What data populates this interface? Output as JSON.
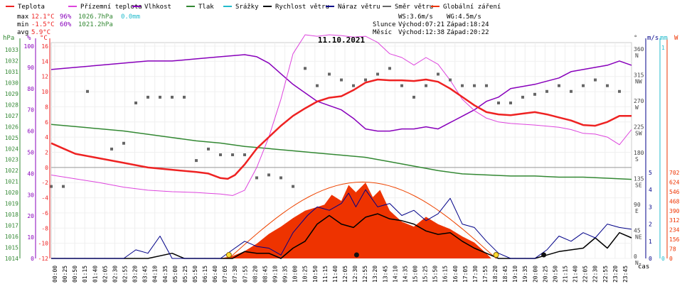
{
  "chart_data": {
    "type": "line",
    "title": "11.10.2021",
    "legend": [
      {
        "name": "Teplota",
        "color": "#ee2222"
      },
      {
        "name": "Přízemní teplota",
        "color": "#dd44dd"
      },
      {
        "name": "Vlhkost",
        "color": "#8800bb"
      },
      {
        "name": "Tlak",
        "color": "#338833"
      },
      {
        "name": "Srážky",
        "color": "#22bbcc"
      },
      {
        "name": "Rychlost větru",
        "color": "#000000"
      },
      {
        "name": "Náraz větru",
        "color": "#000088"
      },
      {
        "name": "Směr větru",
        "color": "#666666"
      },
      {
        "name": "Globální záření",
        "color": "#ee3300"
      }
    ],
    "stats": [
      {
        "label": "max",
        "temp": "12.1°C",
        "hum": "96%",
        "press": "1026.7hPa",
        "rain": "0.0mm"
      },
      {
        "label": "min",
        "temp": "-1.5°C",
        "hum": "60%",
        "press": "1021.2hPa",
        "rain": ""
      },
      {
        "label": "avg",
        "temp": "5.9°C",
        "hum": "",
        "press": "",
        "rain": ""
      }
    ],
    "info": {
      "ws": "WS:3.6m/s",
      "wg": "WG:4.5m/s",
      "sun_label": "Slunce",
      "sunrise": "Východ:07:21",
      "sunset": "Západ:18:24",
      "moon_label": "Měsíc",
      "moonrise": "Východ:12:38",
      "moonset": "Západ:20:22"
    },
    "left_axes": {
      "hpa_title": "hPa",
      "hpa": [
        "1014",
        "1015",
        "1016",
        "1017",
        "1018",
        "1019",
        "1020",
        "1021",
        "1022",
        "1023",
        "1024",
        "1025",
        "1026",
        "1027",
        "1028",
        "1029",
        "1030",
        "1031",
        "1032",
        "1033"
      ],
      "pct_title": "%",
      "pct": [
        "0",
        "10",
        "20",
        "30",
        "40",
        "50",
        "60",
        "70",
        "80",
        "90",
        "100"
      ],
      "c_title": "°C",
      "c": [
        "-12",
        "-10",
        "-8",
        "-6",
        "-4",
        "-2",
        "0",
        "2",
        "4",
        "6",
        "8",
        "10",
        "12",
        "14",
        "16"
      ]
    },
    "right_axes": {
      "dir_title": "°",
      "dir": [
        {
          "deg": "0",
          "lbl": "N"
        },
        {
          "deg": "45",
          "lbl": "NE"
        },
        {
          "deg": "90",
          "lbl": "E"
        },
        {
          "deg": "135",
          "lbl": "SE"
        },
        {
          "deg": "180",
          "lbl": "S"
        },
        {
          "deg": "225",
          "lbl": "SW"
        },
        {
          "deg": "270",
          "lbl": "W"
        },
        {
          "deg": "315",
          "lbl": "NW"
        },
        {
          "deg": "360",
          "lbl": "N"
        }
      ],
      "ms_title": "m/s",
      "ms": [
        "0",
        "1",
        "2",
        "3",
        "4",
        "5"
      ],
      "mm_title": "mm",
      "mm": [
        "0",
        "1"
      ],
      "w_title": "W",
      "w": [
        "0",
        "78",
        "156",
        "234",
        "312",
        "390",
        "468",
        "546",
        "624",
        "702"
      ]
    },
    "x_label": "čas",
    "x_ticks": [
      "00:00",
      "00:25",
      "00:50",
      "01:15",
      "01:40",
      "02:05",
      "02:30",
      "02:55",
      "03:20",
      "03:45",
      "04:10",
      "04:35",
      "05:00",
      "05:25",
      "05:50",
      "06:15",
      "06:40",
      "07:05",
      "07:30",
      "07:55",
      "08:20",
      "08:45",
      "09:10",
      "09:35",
      "10:00",
      "10:25",
      "10:50",
      "11:15",
      "11:40",
      "12:05",
      "12:30",
      "12:55",
      "13:20",
      "13:45",
      "14:10",
      "14:35",
      "15:00",
      "15:25",
      "15:50",
      "16:15",
      "16:40",
      "17:05",
      "17:30",
      "17:55",
      "18:20",
      "18:45",
      "19:10",
      "19:35",
      "20:00",
      "20:25",
      "20:50",
      "21:15",
      "21:40",
      "22:05",
      "22:30",
      "22:55",
      "23:20",
      "23:45"
    ],
    "series": [
      {
        "name": "Teplota",
        "unit": "°C",
        "x": [
          0,
          0.5,
          1,
          2,
          3,
          4,
          5,
          6,
          6.5,
          7,
          7.3,
          7.6,
          8,
          8.5,
          9,
          9.5,
          10,
          10.5,
          11,
          11.5,
          12,
          12.5,
          13,
          13.5,
          14,
          14.5,
          15,
          15.5,
          16,
          16.5,
          17,
          17.5,
          18,
          18.5,
          19,
          19.5,
          20,
          20.5,
          21,
          21.5,
          22,
          22.5,
          23,
          23.5,
          24
        ],
        "values": [
          3.2,
          2.5,
          1.8,
          1.2,
          0.6,
          0,
          -0.3,
          -0.6,
          -0.8,
          -1.4,
          -1.5,
          -1.0,
          0.4,
          2.5,
          4,
          5.5,
          6.8,
          7.8,
          8.7,
          9.2,
          9.4,
          10.2,
          11.2,
          11.6,
          11.5,
          11.5,
          11.4,
          11.6,
          11.3,
          10.4,
          9.3,
          8.2,
          7.3,
          7.0,
          6.9,
          7.1,
          7.3,
          7.0,
          6.6,
          6.2,
          5.6,
          5.5,
          6.0,
          6.8,
          6.8
        ]
      },
      {
        "name": "Přízemní teplota",
        "unit": "°C",
        "x": [
          0,
          1,
          2,
          3,
          4,
          5,
          6,
          6.5,
          7,
          7.5,
          8,
          8.5,
          9,
          9.5,
          10,
          10.5,
          11,
          11.5,
          12,
          12.5,
          13,
          13.5,
          14,
          14.5,
          15,
          15.5,
          16,
          16.5,
          17,
          17.5,
          18,
          18.5,
          19,
          20,
          21,
          21.5,
          22,
          22.5,
          23,
          23.5,
          24
        ],
        "values": [
          -1,
          -1.5,
          -2,
          -2.6,
          -3,
          -3.2,
          -3.3,
          -3.4,
          -3.5,
          -3.7,
          -3,
          0,
          4,
          9,
          15,
          17.5,
          17.3,
          17.5,
          17.4,
          17.2,
          17.3,
          16.5,
          15,
          14.5,
          13.5,
          14.5,
          13.6,
          11.5,
          9,
          7.5,
          6.5,
          6,
          5.8,
          5.6,
          5.3,
          5.0,
          4.5,
          4.4,
          4.0,
          3,
          5
        ]
      },
      {
        "name": "Vlhkost",
        "unit": "%",
        "x": [
          0,
          1,
          2,
          3,
          4,
          5,
          6,
          7,
          8,
          8.5,
          9,
          9.5,
          10,
          10.5,
          11,
          11.5,
          12,
          12.5,
          13,
          13.5,
          14,
          14.5,
          15,
          15.5,
          16,
          16.5,
          17,
          17.5,
          18,
          18.5,
          19,
          20,
          21,
          21.5,
          22,
          22.5,
          23,
          23.5,
          24
        ],
        "values": [
          89,
          90,
          91,
          92,
          93,
          93,
          94,
          95,
          96,
          95,
          92,
          87,
          82,
          78,
          74,
          72,
          70,
          66,
          61,
          60,
          60,
          61,
          61,
          62,
          61,
          64,
          67,
          70,
          74,
          76,
          80,
          82,
          85,
          88,
          89,
          90,
          91,
          93,
          91
        ]
      },
      {
        "name": "Tlak",
        "unit": "hPa",
        "x": [
          0,
          1,
          2,
          3,
          4,
          5,
          6,
          7,
          8,
          9,
          10,
          11,
          12,
          13,
          14,
          15,
          16,
          17,
          18,
          19,
          20,
          21,
          22,
          23,
          24
        ],
        "values": [
          1026.2,
          1026.0,
          1025.8,
          1025.6,
          1025.3,
          1025.0,
          1024.7,
          1024.5,
          1024.2,
          1024.0,
          1023.8,
          1023.6,
          1023.4,
          1023.2,
          1022.8,
          1022.4,
          1022.0,
          1021.7,
          1021.6,
          1021.5,
          1021.5,
          1021.4,
          1021.4,
          1021.3,
          1021.2
        ]
      },
      {
        "name": "Globální záření",
        "unit": "W",
        "x": [
          7,
          7.5,
          8,
          8.5,
          9,
          9.5,
          10,
          10.5,
          11,
          11.3,
          11.6,
          12,
          12.3,
          12.6,
          13,
          13.3,
          13.6,
          14,
          14.5,
          15,
          15.5,
          16,
          16.5,
          17,
          17.5,
          18,
          18.2
        ],
        "values": [
          0,
          20,
          60,
          120,
          200,
          260,
          330,
          390,
          420,
          440,
          520,
          470,
          600,
          540,
          620,
          500,
          560,
          390,
          300,
          260,
          340,
          280,
          240,
          180,
          130,
          40,
          0
        ]
      },
      {
        "name": "Rychlost větru",
        "unit": "m/s",
        "x": [
          0,
          4,
          5,
          5.5,
          6,
          7,
          7.5,
          8,
          8.5,
          9,
          9.5,
          10,
          10.5,
          11,
          11.5,
          12,
          12.5,
          13,
          13.5,
          14,
          14.5,
          15,
          15.5,
          16,
          16.5,
          17,
          17.5,
          18,
          18.5,
          19,
          20,
          20.5,
          21,
          21.5,
          22,
          22.5,
          23,
          23.5,
          24
        ],
        "values": [
          0,
          0,
          0.3,
          0,
          0,
          0,
          0,
          0.4,
          0.3,
          0.3,
          0,
          0.6,
          1.0,
          2.0,
          2.5,
          2.0,
          1.8,
          2.4,
          2.6,
          2.3,
          2.2,
          2.0,
          1.6,
          1.4,
          1.5,
          1.0,
          0.6,
          0.3,
          0,
          0,
          0,
          0.2,
          0.4,
          0.5,
          0.6,
          1.2,
          0.6,
          1.5,
          1.2
        ]
      },
      {
        "name": "Náraz větru",
        "unit": "m/s",
        "x": [
          0,
          2,
          3,
          3.5,
          4,
          4.5,
          5,
          6,
          7,
          7.5,
          8,
          8.5,
          9,
          9.5,
          10,
          10.3,
          10.6,
          11,
          11.5,
          12,
          12.3,
          12.6,
          13,
          13.5,
          14,
          14.5,
          15,
          15.5,
          16,
          16.5,
          17,
          17.5,
          18,
          18.5,
          19,
          20,
          20.5,
          21,
          21.5,
          22,
          22.5,
          23,
          23.5,
          24
        ],
        "values": [
          0,
          0,
          0,
          0.5,
          0.3,
          1.3,
          0,
          0,
          0,
          0.5,
          1.0,
          0.7,
          0.6,
          0.2,
          1.5,
          2.0,
          2.5,
          3.0,
          2.8,
          3.2,
          3.8,
          3.0,
          4.0,
          3.0,
          3.2,
          2.5,
          2.8,
          2.2,
          2.6,
          3.5,
          2.0,
          1.8,
          1.0,
          0.3,
          0,
          0,
          0.5,
          1.3,
          1.0,
          1.5,
          1.2,
          2.0,
          1.8,
          1.7
        ]
      },
      {
        "name": "Směr větru",
        "unit": "°",
        "x": [
          0,
          0.5,
          1.5,
          2.5,
          3,
          3.5,
          4,
          4.5,
          5,
          5.5,
          6,
          6.5,
          7,
          7.5,
          8,
          8.5,
          9,
          9.5,
          10,
          10.5,
          11,
          11.5,
          12,
          12.5,
          13,
          13.5,
          14,
          14.5,
          15,
          15.5,
          16,
          16.5,
          17,
          17.5,
          18,
          18.5,
          19,
          19.5,
          20,
          20.5,
          21,
          21.5,
          22,
          22.5,
          23,
          23.5
        ],
        "values": [
          125,
          125,
          290,
          190,
          200,
          270,
          280,
          280,
          280,
          280,
          170,
          190,
          180,
          180,
          180,
          140,
          145,
          140,
          125,
          330,
          300,
          320,
          310,
          300,
          310,
          320,
          330,
          300,
          280,
          300,
          320,
          310,
          300,
          300,
          300,
          270,
          270,
          280,
          285,
          290,
          300,
          290,
          300,
          310,
          300,
          290
        ]
      }
    ]
  }
}
